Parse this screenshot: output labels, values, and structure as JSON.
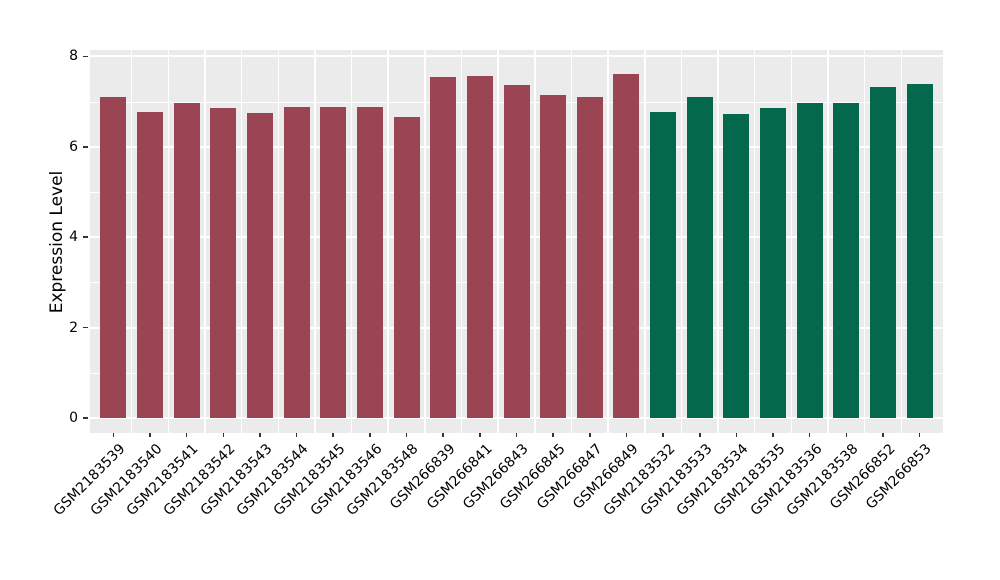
{
  "chart_data": {
    "type": "bar",
    "title": "",
    "xlabel": "",
    "ylabel": "Expression Level",
    "ylim": [
      0,
      8
    ],
    "yticks": [
      "0",
      "2",
      "4",
      "6",
      "8"
    ],
    "ytick_values": [
      0,
      2,
      4,
      6,
      8
    ],
    "yminor_values": [
      1,
      3,
      5,
      7
    ],
    "grid": "white major and minor gridlines on gray panel, vertical gridlines between bars",
    "legend_position": "none",
    "categories": [
      "GSM2183539",
      "GSM2183540",
      "GSM2183541",
      "GSM2183542",
      "GSM2183543",
      "GSM2183544",
      "GSM2183545",
      "GSM2183546",
      "GSM2183548",
      "GSM266839",
      "GSM266841",
      "GSM266843",
      "GSM266845",
      "GSM266847",
      "GSM266849",
      "GSM2183532",
      "GSM2183533",
      "GSM2183534",
      "GSM2183535",
      "GSM2183536",
      "GSM2183538",
      "GSM266852",
      "GSM266853"
    ],
    "values": [
      7.11,
      6.77,
      6.98,
      6.85,
      6.74,
      6.88,
      6.87,
      6.87,
      6.66,
      7.54,
      7.56,
      7.36,
      7.15,
      7.11,
      7.62,
      6.76,
      7.11,
      6.72,
      6.85,
      6.98,
      6.96,
      7.32,
      7.39
    ],
    "bar_group": [
      "group1",
      "group1",
      "group1",
      "group1",
      "group1",
      "group1",
      "group1",
      "group1",
      "group1",
      "group1",
      "group1",
      "group1",
      "group1",
      "group1",
      "group1",
      "group2",
      "group2",
      "group2",
      "group2",
      "group2",
      "group2",
      "group2",
      "group2"
    ],
    "group_colors": {
      "group1": "#9B4453",
      "group2": "#03684C"
    }
  },
  "style_colors": {
    "figure_background": "#FFFFFF",
    "panel_background": "#EBEBEB",
    "grid_color": "#FFFFFF",
    "tick_mark_color": "#333333",
    "text_color": "#000000"
  }
}
